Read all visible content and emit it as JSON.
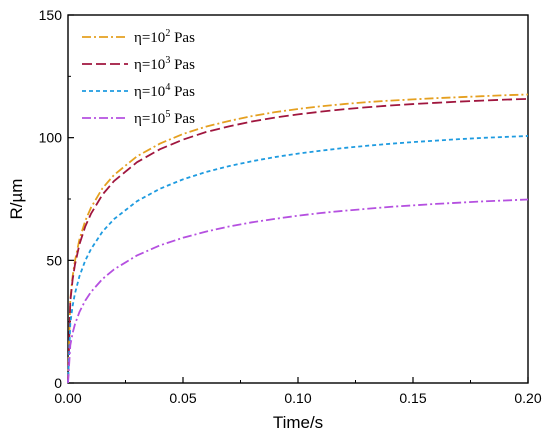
{
  "chart_data": {
    "type": "line",
    "xlabel": "Time/s",
    "ylabel": "R/µm",
    "xlim": [
      0,
      0.2
    ],
    "ylim": [
      0,
      150
    ],
    "x_ticks": [
      "0.00",
      "0.05",
      "0.10",
      "0.15",
      "0.20"
    ],
    "y_ticks": [
      "0",
      "50",
      "100",
      "150"
    ],
    "x_tick_values": [
      0,
      0.05,
      0.1,
      0.15,
      0.2
    ],
    "y_tick_values": [
      0,
      50,
      100,
      150
    ],
    "grid": false,
    "legend_position": "top-left",
    "x": [
      0,
      0.001,
      0.002,
      0.003,
      0.005,
      0.0075,
      0.01,
      0.015,
      0.02,
      0.03,
      0.04,
      0.05,
      0.06,
      0.07,
      0.08,
      0.09,
      0.1,
      0.11,
      0.12,
      0.13,
      0.14,
      0.15,
      0.16,
      0.17,
      0.18,
      0.19,
      0.2
    ],
    "series": [
      {
        "name": "η=10",
        "exponent": "2",
        "unit": " Pas",
        "color": "#E5A020",
        "dash": "dashdot",
        "values": [
          0,
          34.0,
          43.4,
          49.7,
          58.6,
          66.1,
          71.5,
          79.4,
          84.8,
          92.4,
          97.6,
          101.5,
          104.5,
          106.8,
          108.8,
          110.4,
          111.7,
          112.8,
          113.7,
          114.5,
          115.1,
          115.6,
          116.1,
          116.5,
          116.9,
          117.3,
          117.6
        ]
      },
      {
        "name": "η=10",
        "exponent": "3",
        "unit": " Pas",
        "color": "#A0163E",
        "dash": "dash",
        "values": [
          0,
          33.2,
          42.1,
          48.1,
          56.6,
          63.8,
          69.0,
          76.8,
          82.3,
          90.0,
          95.3,
          99.2,
          102.3,
          104.6,
          106.6,
          108.2,
          109.5,
          110.6,
          111.6,
          112.4,
          113.1,
          113.7,
          114.2,
          114.7,
          115.1,
          115.5,
          115.8
        ]
      },
      {
        "name": "η=10",
        "exponent": "4",
        "unit": " Pas",
        "color": "#1E9BE0",
        "dash": "dot",
        "values": [
          0,
          24.3,
          31.4,
          36.4,
          43.6,
          49.9,
          54.6,
          61.7,
          66.8,
          74.1,
          79.2,
          83.0,
          86.0,
          88.4,
          90.4,
          92.1,
          93.5,
          94.7,
          95.8,
          96.7,
          97.5,
          98.2,
          98.8,
          99.4,
          99.9,
          100.3,
          100.7
        ]
      },
      {
        "name": "η=10",
        "exponent": "5",
        "unit": " Pas",
        "color": "#B550E0",
        "dash": "dashdot",
        "values": [
          0,
          15.4,
          20.3,
          23.9,
          29.0,
          33.6,
          37.1,
          42.4,
          46.3,
          52.0,
          56.1,
          59.2,
          61.7,
          63.8,
          65.5,
          66.9,
          68.2,
          69.3,
          70.2,
          71.0,
          71.8,
          72.4,
          73.0,
          73.5,
          74.0,
          74.4,
          74.8
        ]
      }
    ]
  }
}
